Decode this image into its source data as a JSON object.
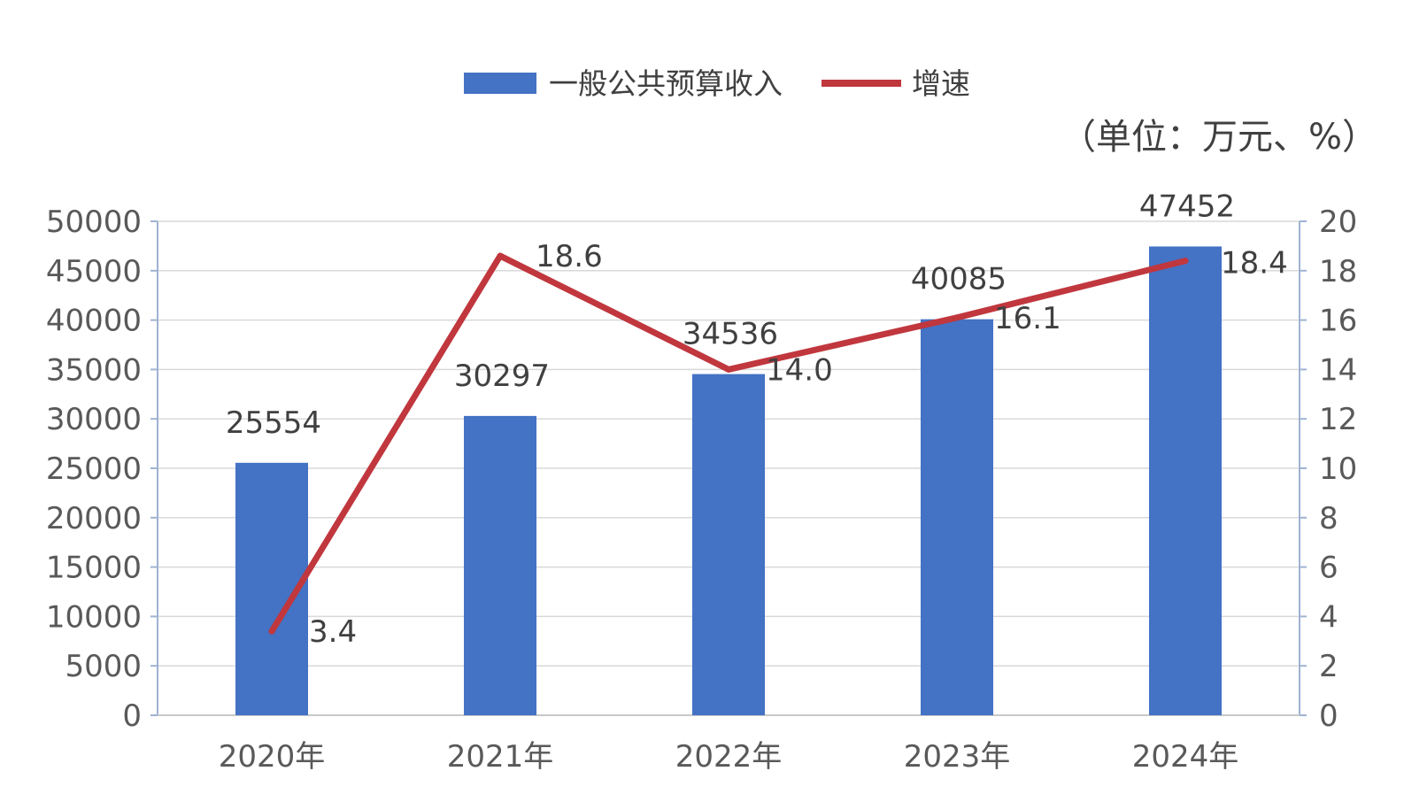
{
  "chart_data": {
    "type": "bar",
    "title": "",
    "unit_note": "（单位：万元、%）",
    "categories": [
      "2020年",
      "2021年",
      "2022年",
      "2023年",
      "2024年"
    ],
    "series": [
      {
        "name": "一般公共预算收入",
        "type": "bar",
        "axis": "left",
        "values": [
          25554,
          30297,
          34536,
          40085,
          47452
        ],
        "labels": [
          "25554",
          "30297",
          "34536",
          "40085",
          "47452"
        ],
        "color": "#4472C4"
      },
      {
        "name": "增速",
        "type": "line",
        "axis": "right",
        "values": [
          3.4,
          18.6,
          14.0,
          16.1,
          18.4
        ],
        "labels": [
          "3.4",
          "18.6",
          "14.0",
          "16.1",
          "18.4"
        ],
        "color": "#C0373D"
      }
    ],
    "y_left": {
      "min": 0,
      "max": 50000,
      "ticks": [
        0,
        5000,
        10000,
        15000,
        20000,
        25000,
        30000,
        35000,
        40000,
        45000,
        50000
      ],
      "tick_labels": [
        "0",
        "5000",
        "10000",
        "15000",
        "20000",
        "25000",
        "30000",
        "35000",
        "40000",
        "45000",
        "50000"
      ]
    },
    "y_right": {
      "min": 0,
      "max": 20,
      "ticks": [
        0,
        2,
        4,
        6,
        8,
        10,
        12,
        14,
        16,
        18,
        20
      ],
      "tick_labels": [
        "0",
        "2",
        "4",
        "6",
        "8",
        "10",
        "12",
        "14",
        "16",
        "18",
        "20"
      ]
    },
    "grid": true,
    "legend_position": "top-center"
  }
}
